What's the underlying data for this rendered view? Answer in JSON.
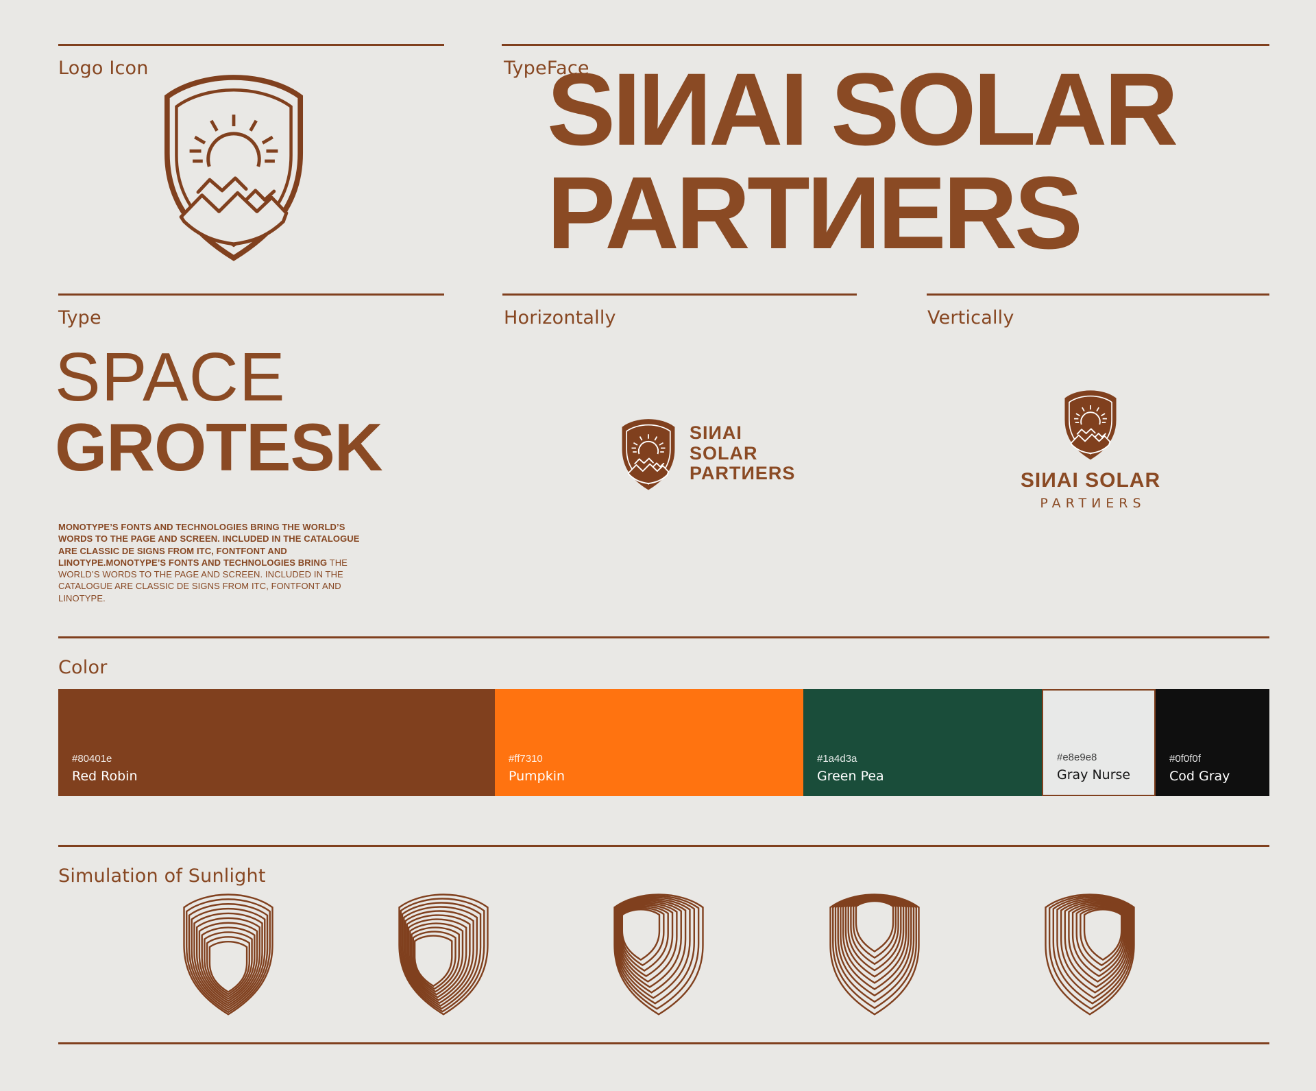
{
  "page": {
    "colors": {
      "background": "#e9e8e5",
      "brand_brown": "#80401e",
      "headline_text": "#8a4a24"
    }
  },
  "sections": {
    "logo_icon": {
      "label": "Logo Icon",
      "icon": "shield-sun-mountains-icon"
    },
    "typeface": {
      "label": "TypeFace",
      "wordmark_line1": "SIИAI SOLAR",
      "wordmark_line2": "PARTИERS"
    },
    "type": {
      "label": "Type",
      "font_name_line1": "SPACE",
      "font_name_line2": "GROTESK",
      "body_bold": "MONOTYPE’S FONTS AND TECHNOLOGIES BRING THE WORLD’S WORDS TO THE PAGE AND SCREEN. INCLUDED IN THE CATALOGUE ARE CLASSIC DE SIGNS FROM ITC, FONTFONT AND LINOTYPE.MONOTYPE’S FONTS AND TECHNOLOGIES BRING",
      "body_regular": " THE WORLD’S WORDS TO THE PAGE AND SCREEN. INCLUDED IN THE CATALOGUE ARE CLASSIC DE SIGNS FROM ITC, FONTFONT AND LINOTYPE."
    },
    "horizontally": {
      "label": "Horizontally",
      "lockup_lines": [
        "SIИAI",
        "SOLAR",
        "PARTИERS"
      ]
    },
    "vertically": {
      "label": "Vertically",
      "lockup_line1": "SIИAI SOLAR",
      "lockup_line2": "PARTИERS"
    },
    "color": {
      "label": "Color",
      "swatches": [
        {
          "hex": "#80401e",
          "name": "Red Robin"
        },
        {
          "hex": "#ff7310",
          "name": "Pumpkin"
        },
        {
          "hex": "#1a4d3a",
          "name": "Green Pea"
        },
        {
          "hex": "#e8e9e8",
          "name": "Gray Nurse"
        },
        {
          "hex": "#0f0f0f",
          "name": "Cod Gray"
        }
      ]
    },
    "sunlight": {
      "label": "Simulation of Sunlight"
    }
  }
}
